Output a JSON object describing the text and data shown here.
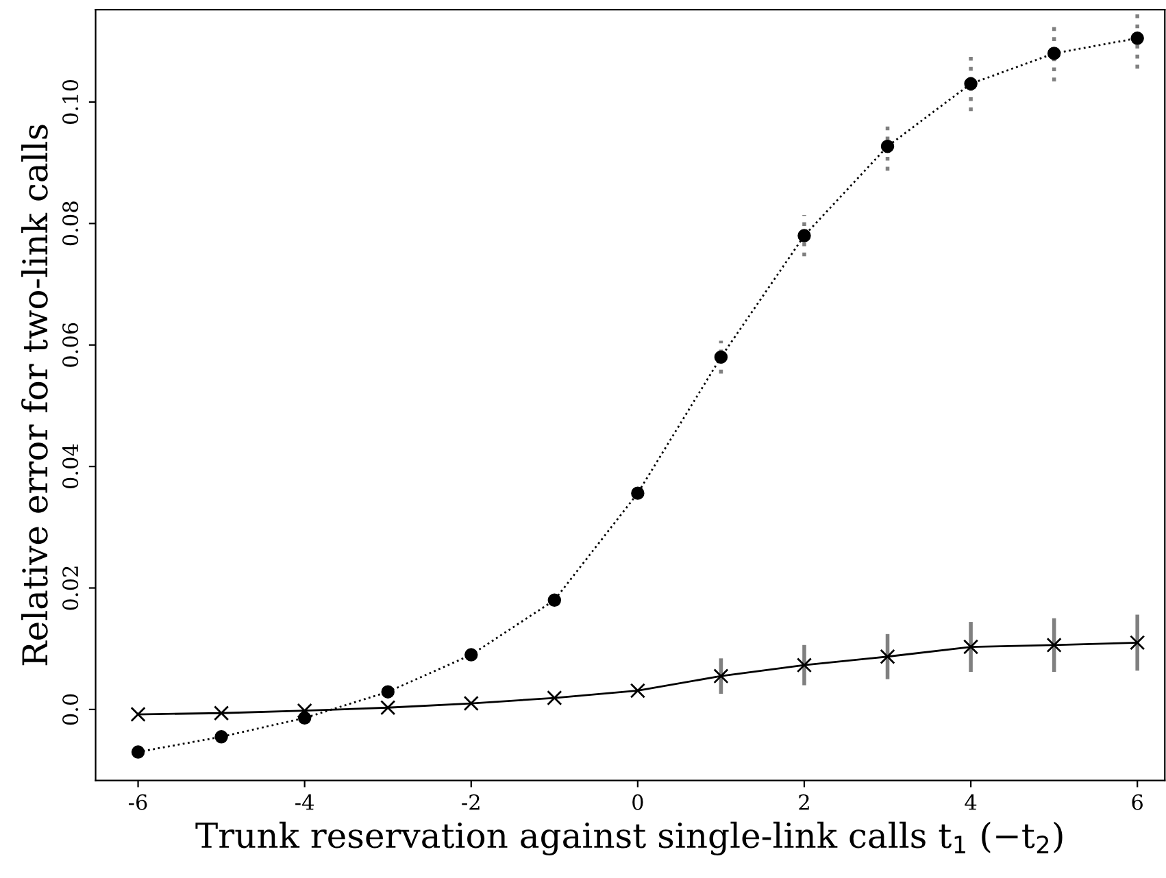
{
  "chart_data": {
    "type": "line",
    "xlabel": "Trunk reservation against single-link calls t$_{1}$ (−t$_{2}$)",
    "ylabel": "Relative error for two-link calls",
    "x": [
      -6,
      -5,
      -4,
      -3,
      -2,
      -1,
      0,
      1,
      2,
      3,
      4,
      5,
      6
    ],
    "series": [
      {
        "color": "#000000",
        "marker": "circle",
        "line_style": "dotted",
        "values": [
          -0.007,
          -0.0045,
          -0.0014,
          0.0029,
          0.009,
          0.018,
          0.0356,
          0.058,
          0.078,
          0.0927,
          0.103,
          0.108,
          0.1105
        ],
        "errors": [
          null,
          null,
          null,
          null,
          null,
          null,
          null,
          0.0027,
          0.0034,
          0.004,
          0.0045,
          0.0046,
          0.005
        ]
      },
      {
        "color": "#000000",
        "marker": "cross",
        "line_style": "solid",
        "values": [
          -0.0008,
          -0.0006,
          -0.0002,
          0.0003,
          0.001,
          0.0019,
          0.0031,
          0.0055,
          0.0073,
          0.0087,
          0.0103,
          0.0106,
          0.011
        ],
        "errors": [
          null,
          null,
          null,
          null,
          null,
          null,
          null,
          0.0026,
          0.003,
          0.0034,
          0.0038,
          0.0041,
          0.0043
        ]
      }
    ],
    "xlim": [
      -6.51,
      6.33
    ],
    "ylim": [
      -0.0117,
      0.1152
    ],
    "xticks": [
      {
        "value": -6,
        "label": "-6"
      },
      {
        "value": -4,
        "label": "-4"
      },
      {
        "value": -2,
        "label": "-2"
      },
      0,
      2,
      4,
      6
    ],
    "yticks": [
      {
        "value": 0,
        "label": "0.0"
      },
      0.02,
      0.04,
      0.06,
      0.08,
      {
        "value": 0.1,
        "label": "0.10"
      }
    ],
    "grid": false
  }
}
